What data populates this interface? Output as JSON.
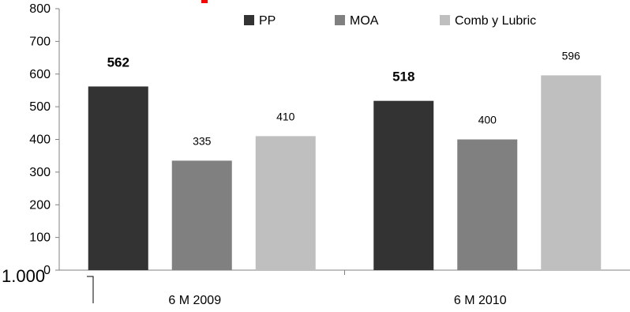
{
  "chart_data": {
    "type": "bar",
    "categories": [
      "6 M 2009",
      "6 M 2010"
    ],
    "series": [
      {
        "name": "PP",
        "values": [
          562,
          518
        ],
        "color": "#333333",
        "label_bold": true
      },
      {
        "name": "MOA",
        "values": [
          335,
          400
        ],
        "color": "#808080",
        "label_bold": false
      },
      {
        "name": "Comb y Lubric",
        "values": [
          410,
          596
        ],
        "color": "#bfbfbf",
        "label_bold": false
      }
    ],
    "y_ticks": [
      "0",
      "100",
      "200",
      "300",
      "400",
      "500",
      "600",
      "700",
      "800"
    ],
    "ylim": [
      0,
      800
    ],
    "legend_position": "top-right",
    "grid": false,
    "overlay_text": "1.000",
    "title_fragment_color": "#ff0000"
  }
}
